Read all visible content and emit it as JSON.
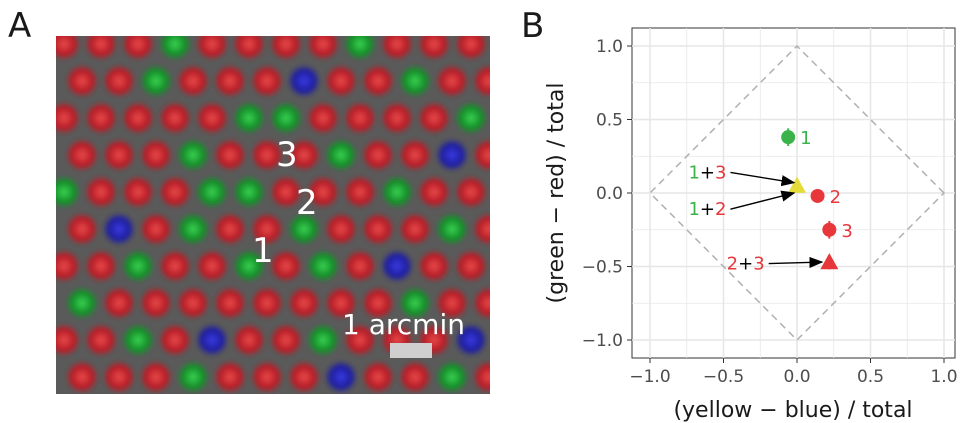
{
  "panels": {
    "a": "A",
    "b": "B"
  },
  "mosaic": {
    "labels": [
      "1",
      "2",
      "3"
    ],
    "scalebar_label": "1 arcmin",
    "colors": {
      "red": "#c8202a",
      "green": "#18a030",
      "blue": "#2a2ab4",
      "background": "#5a5a5a"
    }
  },
  "chart_data": {
    "type": "scatter",
    "xlabel": "(yellow − blue) / total",
    "ylabel": "(green − red) / total",
    "xlim": [
      -1.05,
      1.05
    ],
    "ylim": [
      -1.05,
      1.05
    ],
    "xticks": [
      -1.0,
      -0.5,
      0.0,
      0.5,
      1.0
    ],
    "yticks": [
      -1.0,
      -0.5,
      0.0,
      0.5,
      1.0
    ],
    "xtick_labels": [
      "−1.0",
      "−0.5",
      "0.0",
      "0.5",
      "1.0"
    ],
    "ytick_labels": [
      "−1.0",
      "−0.5",
      "0.0",
      "0.5",
      "1.0"
    ],
    "grid": true,
    "reference_diamond": [
      [
        1,
        0
      ],
      [
        0,
        1
      ],
      [
        -1,
        0
      ],
      [
        0,
        -1
      ]
    ],
    "points": [
      {
        "label": "1",
        "x": -0.06,
        "y": 0.38,
        "yerr": 0.06,
        "marker": "circle",
        "color": "#3cb34a"
      },
      {
        "label": "2",
        "x": 0.14,
        "y": -0.02,
        "yerr": 0.0,
        "marker": "circle",
        "color": "#e8373a"
      },
      {
        "label": "3",
        "x": 0.22,
        "y": -0.25,
        "yerr": 0.06,
        "marker": "circle",
        "color": "#e8373a"
      },
      {
        "label": "1+3",
        "x": 0.0,
        "y": 0.05,
        "marker": "triangle",
        "color": "#e5dc3a"
      },
      {
        "label": "1+2",
        "x": 0.0,
        "y": 0.05,
        "marker": "triangle",
        "color": "#e5dc3a"
      },
      {
        "label": "2+3",
        "x": 0.22,
        "y": -0.47,
        "yerr": 0.05,
        "marker": "triangle",
        "color": "#e8373a"
      }
    ],
    "annotations": [
      {
        "parts": [
          {
            "t": "1",
            "c": "#3cb34a"
          },
          {
            "t": "+",
            "c": "#000000"
          },
          {
            "t": "3",
            "c": "#e8373a"
          }
        ],
        "x": -0.48,
        "y": 0.14,
        "arrow_to": [
          -0.02,
          0.07
        ]
      },
      {
        "parts": [
          {
            "t": "1",
            "c": "#3cb34a"
          },
          {
            "t": "+",
            "c": "#000000"
          },
          {
            "t": "2",
            "c": "#e8373a"
          }
        ],
        "x": -0.48,
        "y": -0.11,
        "arrow_to": [
          -0.02,
          0.0
        ]
      },
      {
        "parts": [
          {
            "t": "2",
            "c": "#e8373a"
          },
          {
            "t": "+",
            "c": "#000000"
          },
          {
            "t": "3",
            "c": "#e8373a"
          }
        ],
        "x": -0.22,
        "y": -0.48,
        "arrow_to": [
          0.17,
          -0.47
        ]
      }
    ]
  }
}
